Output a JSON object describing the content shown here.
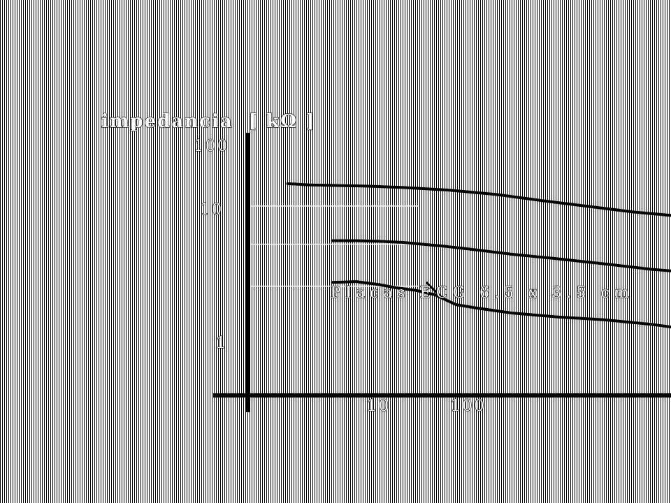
{
  "chart_data": {
    "type": "line",
    "title": "",
    "ylabel": "impedancia  [ kΩ ]",
    "xlabel": "",
    "x_scale": "log",
    "y_scale": "log",
    "xlim": [
      1,
      1000
    ],
    "ylim": [
      1,
      100
    ],
    "x_ticks": [
      "10",
      "100"
    ],
    "y_ticks": [
      "100",
      "10",
      "1"
    ],
    "grid": true,
    "legend": "none",
    "series": [
      {
        "x": [
          1.8,
          2.5,
          4.0,
          6.0,
          10,
          20,
          40,
          80,
          150,
          300,
          600,
          1000
        ],
        "y": [
          45,
          44,
          43.5,
          43,
          42,
          40,
          37,
          33,
          30,
          27,
          25,
          24
        ]
      },
      {
        "x": [
          3.5,
          5.0,
          7.0,
          10,
          18,
          30,
          50,
          100,
          200,
          400,
          700,
          1000
        ],
        "y": [
          16,
          16,
          15.8,
          15.5,
          14.5,
          13.5,
          12.5,
          11.5,
          10.5,
          9.5,
          9.0,
          8.7
        ]
      },
      {
        "x": [
          3.5,
          5.0,
          7.0,
          9.0,
          12,
          16,
          22,
          30,
          50,
          100,
          200,
          400,
          700,
          1000
        ],
        "y": [
          7.5,
          7.6,
          7.2,
          6.8,
          6.5,
          6.0,
          5.0,
          4.7,
          4.3,
          4.0,
          3.8,
          3.5,
          3.2,
          3.0
        ]
      }
    ],
    "annotations": [
      {
        "text": "Placas ECG 6.5 x 3.5 cm",
        "points_to": {
          "x": 18,
          "y": 5.6
        }
      }
    ]
  },
  "colors": {
    "line": "#000000",
    "grid": "#ffffff",
    "label_fill": "#ffffff",
    "label_stroke": "#000000"
  }
}
